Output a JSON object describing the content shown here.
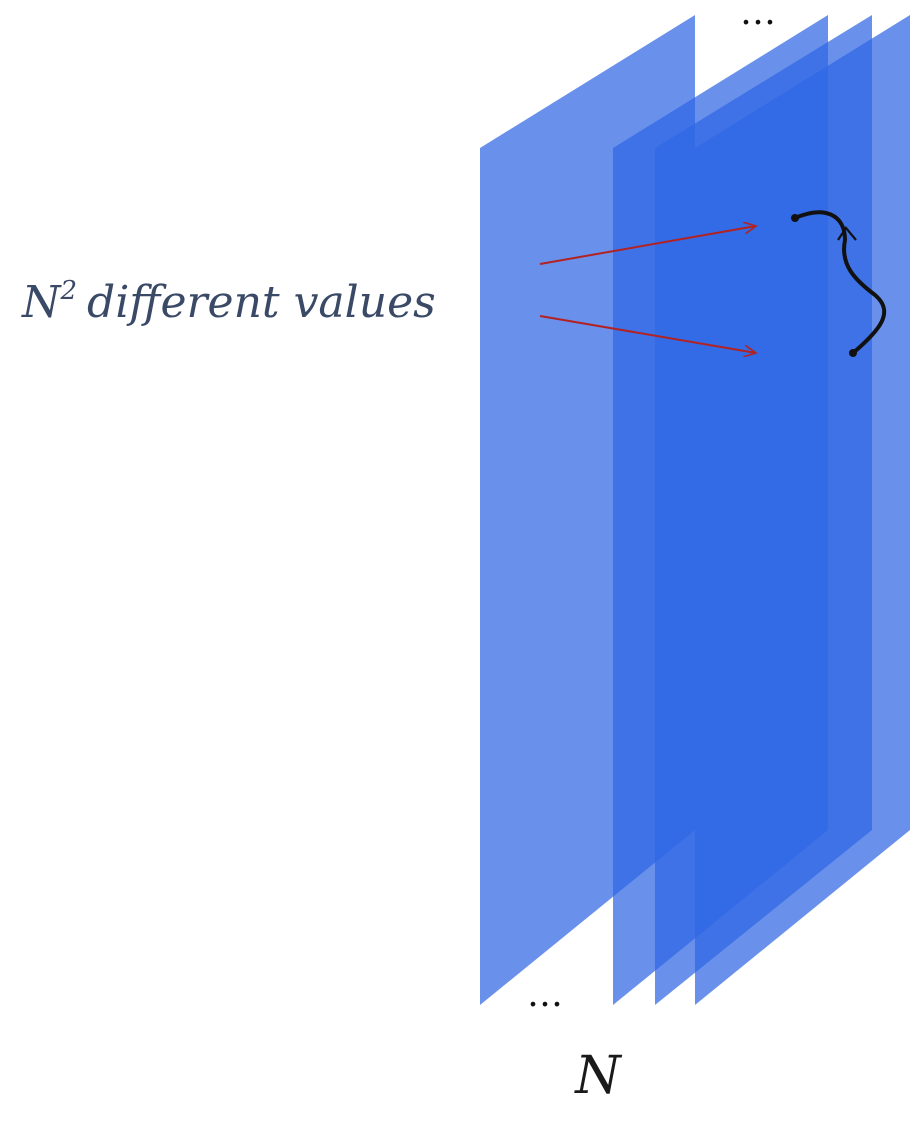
{
  "label": {
    "base": "N",
    "exponent": "2",
    "rest": "different values"
  },
  "ellipsis_top": "…",
  "ellipsis_bottom": "…",
  "axis_label": "N",
  "colors": {
    "plane": "#2f67e4",
    "arrow": "#b22222",
    "label": "#3a4a66",
    "curve": "#111111"
  }
}
